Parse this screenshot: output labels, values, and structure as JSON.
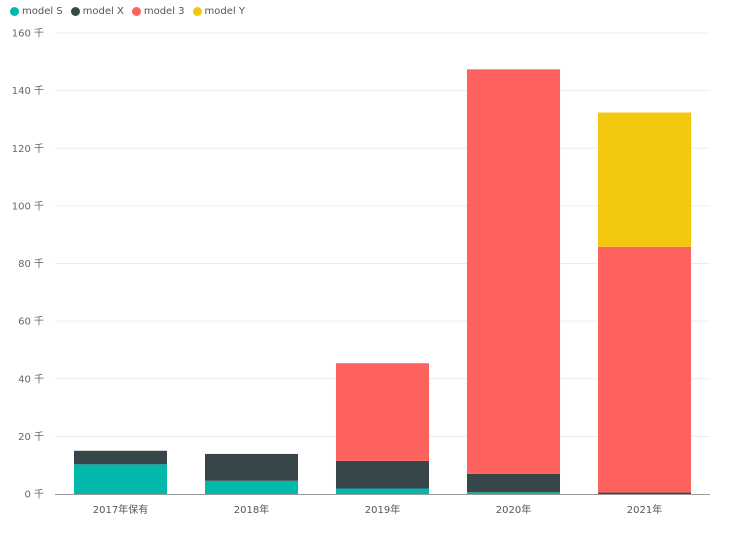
{
  "chart_data": {
    "type": "bar",
    "stacked": true,
    "title": "",
    "xlabel": "",
    "ylabel": "",
    "categories": [
      "2017年保有",
      "2018年",
      "2019年",
      "2020年",
      "2021年"
    ],
    "series": [
      {
        "name": "model S",
        "color": "#01B8AA",
        "values": [
          10.3,
          4.6,
          1.9,
          0.6,
          0.0
        ]
      },
      {
        "name": "model X",
        "color": "#374649",
        "values": [
          4.7,
          9.3,
          9.6,
          6.4,
          0.5
        ]
      },
      {
        "name": "model 3",
        "color": "#FD625E",
        "values": [
          0,
          0,
          33.9,
          140.4,
          85.3
        ]
      },
      {
        "name": "model Y",
        "color": "#F2C80F",
        "values": [
          0,
          0,
          0,
          0,
          46.6
        ]
      }
    ],
    "ylim": [
      0,
      160
    ],
    "yticks": [
      {
        "value": 0,
        "label": "0 千"
      },
      {
        "value": 20,
        "label": "20 千"
      },
      {
        "value": 40,
        "label": "40 千"
      },
      {
        "value": 60,
        "label": "60 千"
      },
      {
        "value": 80,
        "label": "80 千"
      },
      {
        "value": 100,
        "label": "100 千"
      },
      {
        "value": 120,
        "label": "120 千"
      },
      {
        "value": 140,
        "label": "140 千"
      },
      {
        "value": 160,
        "label": "160 千"
      }
    ],
    "grid": true,
    "legend_position": "top-left"
  }
}
